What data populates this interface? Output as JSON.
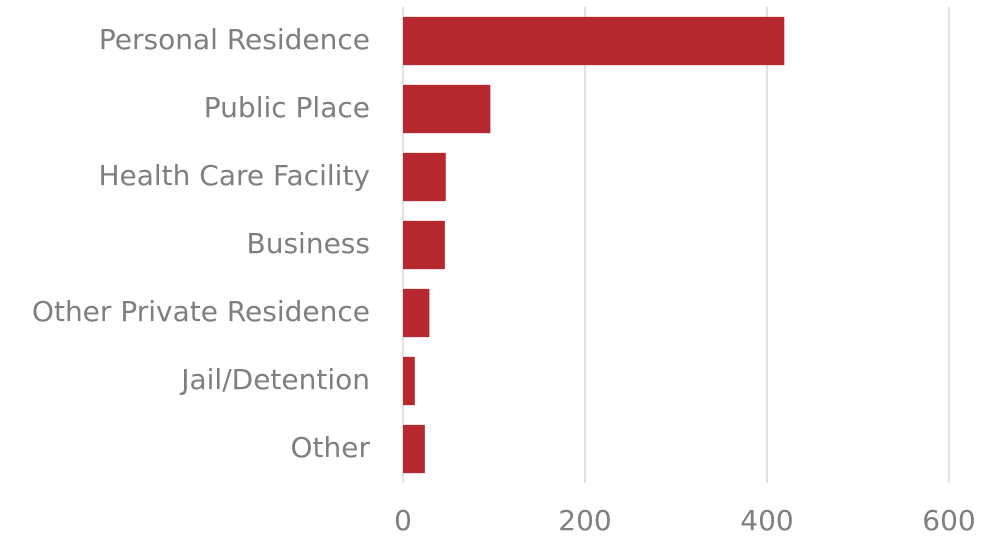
{
  "chart_data": {
    "type": "hbar",
    "categories": [
      "Personal Residence",
      "Public Place",
      "Health Care Facility",
      "Business",
      "Other Private Residence",
      "Jail/Detention",
      "Other"
    ],
    "values": [
      419,
      96,
      47,
      46,
      29,
      13,
      24
    ],
    "color": "#b7282e",
    "xlim": [
      0,
      600
    ],
    "xticks": [
      0,
      200,
      400,
      600
    ],
    "grid": true
  }
}
